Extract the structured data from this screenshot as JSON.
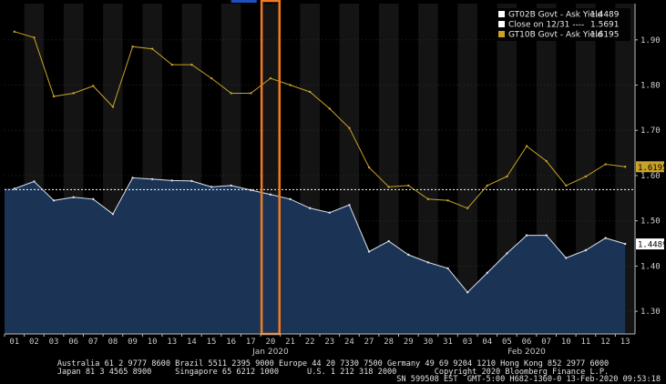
{
  "colors": {
    "background": "#000000",
    "band_alt": "#141414",
    "area_fill": "#1b3456",
    "area_line": "#d8e0ec",
    "gold": "#c9a227",
    "close_line": "#ffffff",
    "highlight": "#f47a1f",
    "accent_blue": "#1f4fb8"
  },
  "legend": [
    {
      "swatch": "#ffffff",
      "label": "GT02B Govt - Ask Yield",
      "value": "1.4489"
    },
    {
      "swatch": "#ffffff",
      "label": "Close on 12/31 ----",
      "value": "1.5691"
    },
    {
      "swatch": "#c9a227",
      "label": "GT10B Govt - Ask Yield",
      "value": "1.6195"
    }
  ],
  "last_value_tags": {
    "gt10": "1.6195",
    "gt02": "1.4489"
  },
  "footer": {
    "line1": "Australia 61 2 9777 8600 Brazil 5511 2395 9000 Europe 44 20 7330 7500 Germany 49 69 9204 1210 Hong Kong 852 2977 6000",
    "line2": "Japan 81 3 4565 8900     Singapore 65 6212 1000      U.S. 1 212 318 2000        Copyright 2020 Bloomberg Finance L.P.",
    "line3": "SN 599508 EST  GMT-5:00 H682-1360-0 13-Feb-2020 09:53:18"
  },
  "chart_data": {
    "type": "line",
    "title": "",
    "xlabel": "",
    "ylabel": "",
    "ylim": [
      1.25,
      1.98
    ],
    "y_ticks": [
      "1.30",
      "1.40",
      "1.50",
      "1.60",
      "1.70",
      "1.80",
      "1.90"
    ],
    "x_tick_labels": [
      "01",
      "02",
      "03",
      "06",
      "07",
      "08",
      "09",
      "10",
      "13",
      "14",
      "15",
      "16",
      "17",
      "20",
      "21",
      "22",
      "23",
      "24",
      "27",
      "28",
      "29",
      "30",
      "31",
      "03",
      "04",
      "05",
      "06",
      "07",
      "10",
      "11",
      "12",
      "13"
    ],
    "month_labels": [
      {
        "label": "Jan 2020",
        "at_index": 13
      },
      {
        "label": "Feb 2020",
        "at_index": 26
      }
    ],
    "highlight_index": 13,
    "reference_line": {
      "name": "Close on 12/31",
      "value": 1.5691
    },
    "series": [
      {
        "name": "GT02B Govt - Ask Yield",
        "style": "area",
        "values": [
          1.571,
          1.587,
          1.545,
          1.552,
          1.548,
          1.515,
          1.595,
          1.592,
          1.589,
          1.588,
          1.575,
          1.578,
          1.568,
          1.558,
          1.548,
          1.528,
          1.518,
          1.535,
          1.432,
          1.455,
          1.425,
          1.408,
          1.395,
          1.342,
          1.385,
          1.428,
          1.468,
          1.468,
          1.418,
          1.435,
          1.462,
          1.449
        ]
      },
      {
        "name": "GT10B Govt - Ask Yield",
        "style": "line",
        "values": [
          1.918,
          1.905,
          1.775,
          1.782,
          1.798,
          1.752,
          1.885,
          1.88,
          1.845,
          1.845,
          1.815,
          1.782,
          1.782,
          1.815,
          1.8,
          1.785,
          1.748,
          1.705,
          1.618,
          1.575,
          1.578,
          1.548,
          1.545,
          1.528,
          1.578,
          1.598,
          1.665,
          1.632,
          1.578,
          1.598,
          1.625,
          1.6195
        ]
      }
    ]
  }
}
